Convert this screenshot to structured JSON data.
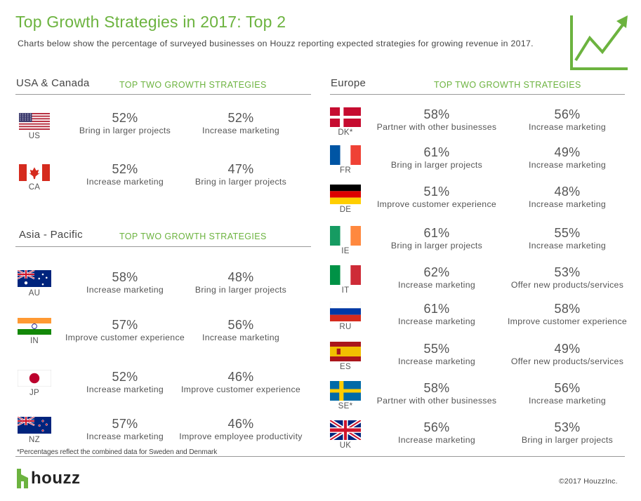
{
  "title": "Top Growth Strategies in 2017: Top 2",
  "subtitle": "Charts below show the percentage of surveyed businesses on Houzz reporting expected strategies for growing revenue in 2017.",
  "icons": {
    "growth": "growth-chart-icon",
    "logo": "houzz-logo-icon"
  },
  "colors": {
    "accent": "#6cb33f",
    "text": "#444444",
    "rule": "#999999"
  },
  "sections": {
    "usa": {
      "title": "USA & Canada",
      "subtitle": "TOP TWO GROWTH STRATEGIES",
      "rows": [
        {
          "code": "US",
          "flag": "us",
          "s1": {
            "pct": "52%",
            "label": "Bring in larger projects"
          },
          "s2": {
            "pct": "52%",
            "label": "Increase marketing"
          }
        },
        {
          "code": "CA",
          "flag": "ca",
          "s1": {
            "pct": "52%",
            "label": "Increase marketing"
          },
          "s2": {
            "pct": "47%",
            "label": "Bring in larger projects"
          }
        }
      ]
    },
    "asia": {
      "title": "Asia - Pacific",
      "subtitle": "TOP TWO GROWTH STRATEGIES",
      "rows": [
        {
          "code": "AU",
          "flag": "au",
          "s1": {
            "pct": "58%",
            "label": "Increase marketing"
          },
          "s2": {
            "pct": "48%",
            "label": "Bring in larger projects"
          }
        },
        {
          "code": "IN",
          "flag": "in",
          "s1": {
            "pct": "57%",
            "label": "Improve customer experience"
          },
          "s2": {
            "pct": "56%",
            "label": "Increase marketing"
          }
        },
        {
          "code": "JP",
          "flag": "jp",
          "s1": {
            "pct": "52%",
            "label": "Increase marketing"
          },
          "s2": {
            "pct": "46%",
            "label": "Improve customer experience"
          }
        },
        {
          "code": "NZ",
          "flag": "nz",
          "s1": {
            "pct": "57%",
            "label": "Increase marketing"
          },
          "s2": {
            "pct": "46%",
            "label": "Improve employee productivity"
          }
        }
      ]
    },
    "europe": {
      "title": "Europe",
      "subtitle": "TOP TWO GROWTH STRATEGIES",
      "rows": [
        {
          "code": "DK*",
          "flag": "dk",
          "s1": {
            "pct": "58%",
            "label": "Partner with other businesses"
          },
          "s2": {
            "pct": "56%",
            "label": "Increase marketing"
          }
        },
        {
          "code": "FR",
          "flag": "fr",
          "s1": {
            "pct": "61%",
            "label": "Bring in larger projects"
          },
          "s2": {
            "pct": "49%",
            "label": "Increase marketing"
          }
        },
        {
          "code": "DE",
          "flag": "de",
          "s1": {
            "pct": "51%",
            "label": "Improve customer experience"
          },
          "s2": {
            "pct": "48%",
            "label": "Increase marketing"
          }
        },
        {
          "code": "IE",
          "flag": "ie",
          "s1": {
            "pct": "61%",
            "label": "Bring in larger projects"
          },
          "s2": {
            "pct": "55%",
            "label": "Increase marketing"
          }
        },
        {
          "code": "IT",
          "flag": "it",
          "s1": {
            "pct": "62%",
            "label": "Increase marketing"
          },
          "s2": {
            "pct": "53%",
            "label": "Offer new products/services"
          }
        },
        {
          "code": "RU",
          "flag": "ru",
          "s1": {
            "pct": "61%",
            "label": "Increase marketing"
          },
          "s2": {
            "pct": "58%",
            "label": "Improve customer experience"
          }
        },
        {
          "code": "ES",
          "flag": "es",
          "s1": {
            "pct": "55%",
            "label": "Increase marketing"
          },
          "s2": {
            "pct": "49%",
            "label": "Offer new products/services"
          }
        },
        {
          "code": "SE*",
          "flag": "se",
          "s1": {
            "pct": "58%",
            "label": "Partner with other businesses"
          },
          "s2": {
            "pct": "56%",
            "label": "Increase marketing"
          }
        },
        {
          "code": "UK",
          "flag": "uk",
          "s1": {
            "pct": "56%",
            "label": "Increase marketing"
          },
          "s2": {
            "pct": "53%",
            "label": "Bring in larger projects"
          }
        }
      ]
    }
  },
  "footnote": "*Percentages reflect the combined data for Sweden and Denmark",
  "brand": {
    "name": "houzz"
  },
  "copyright": "©2017 HouzzInc."
}
